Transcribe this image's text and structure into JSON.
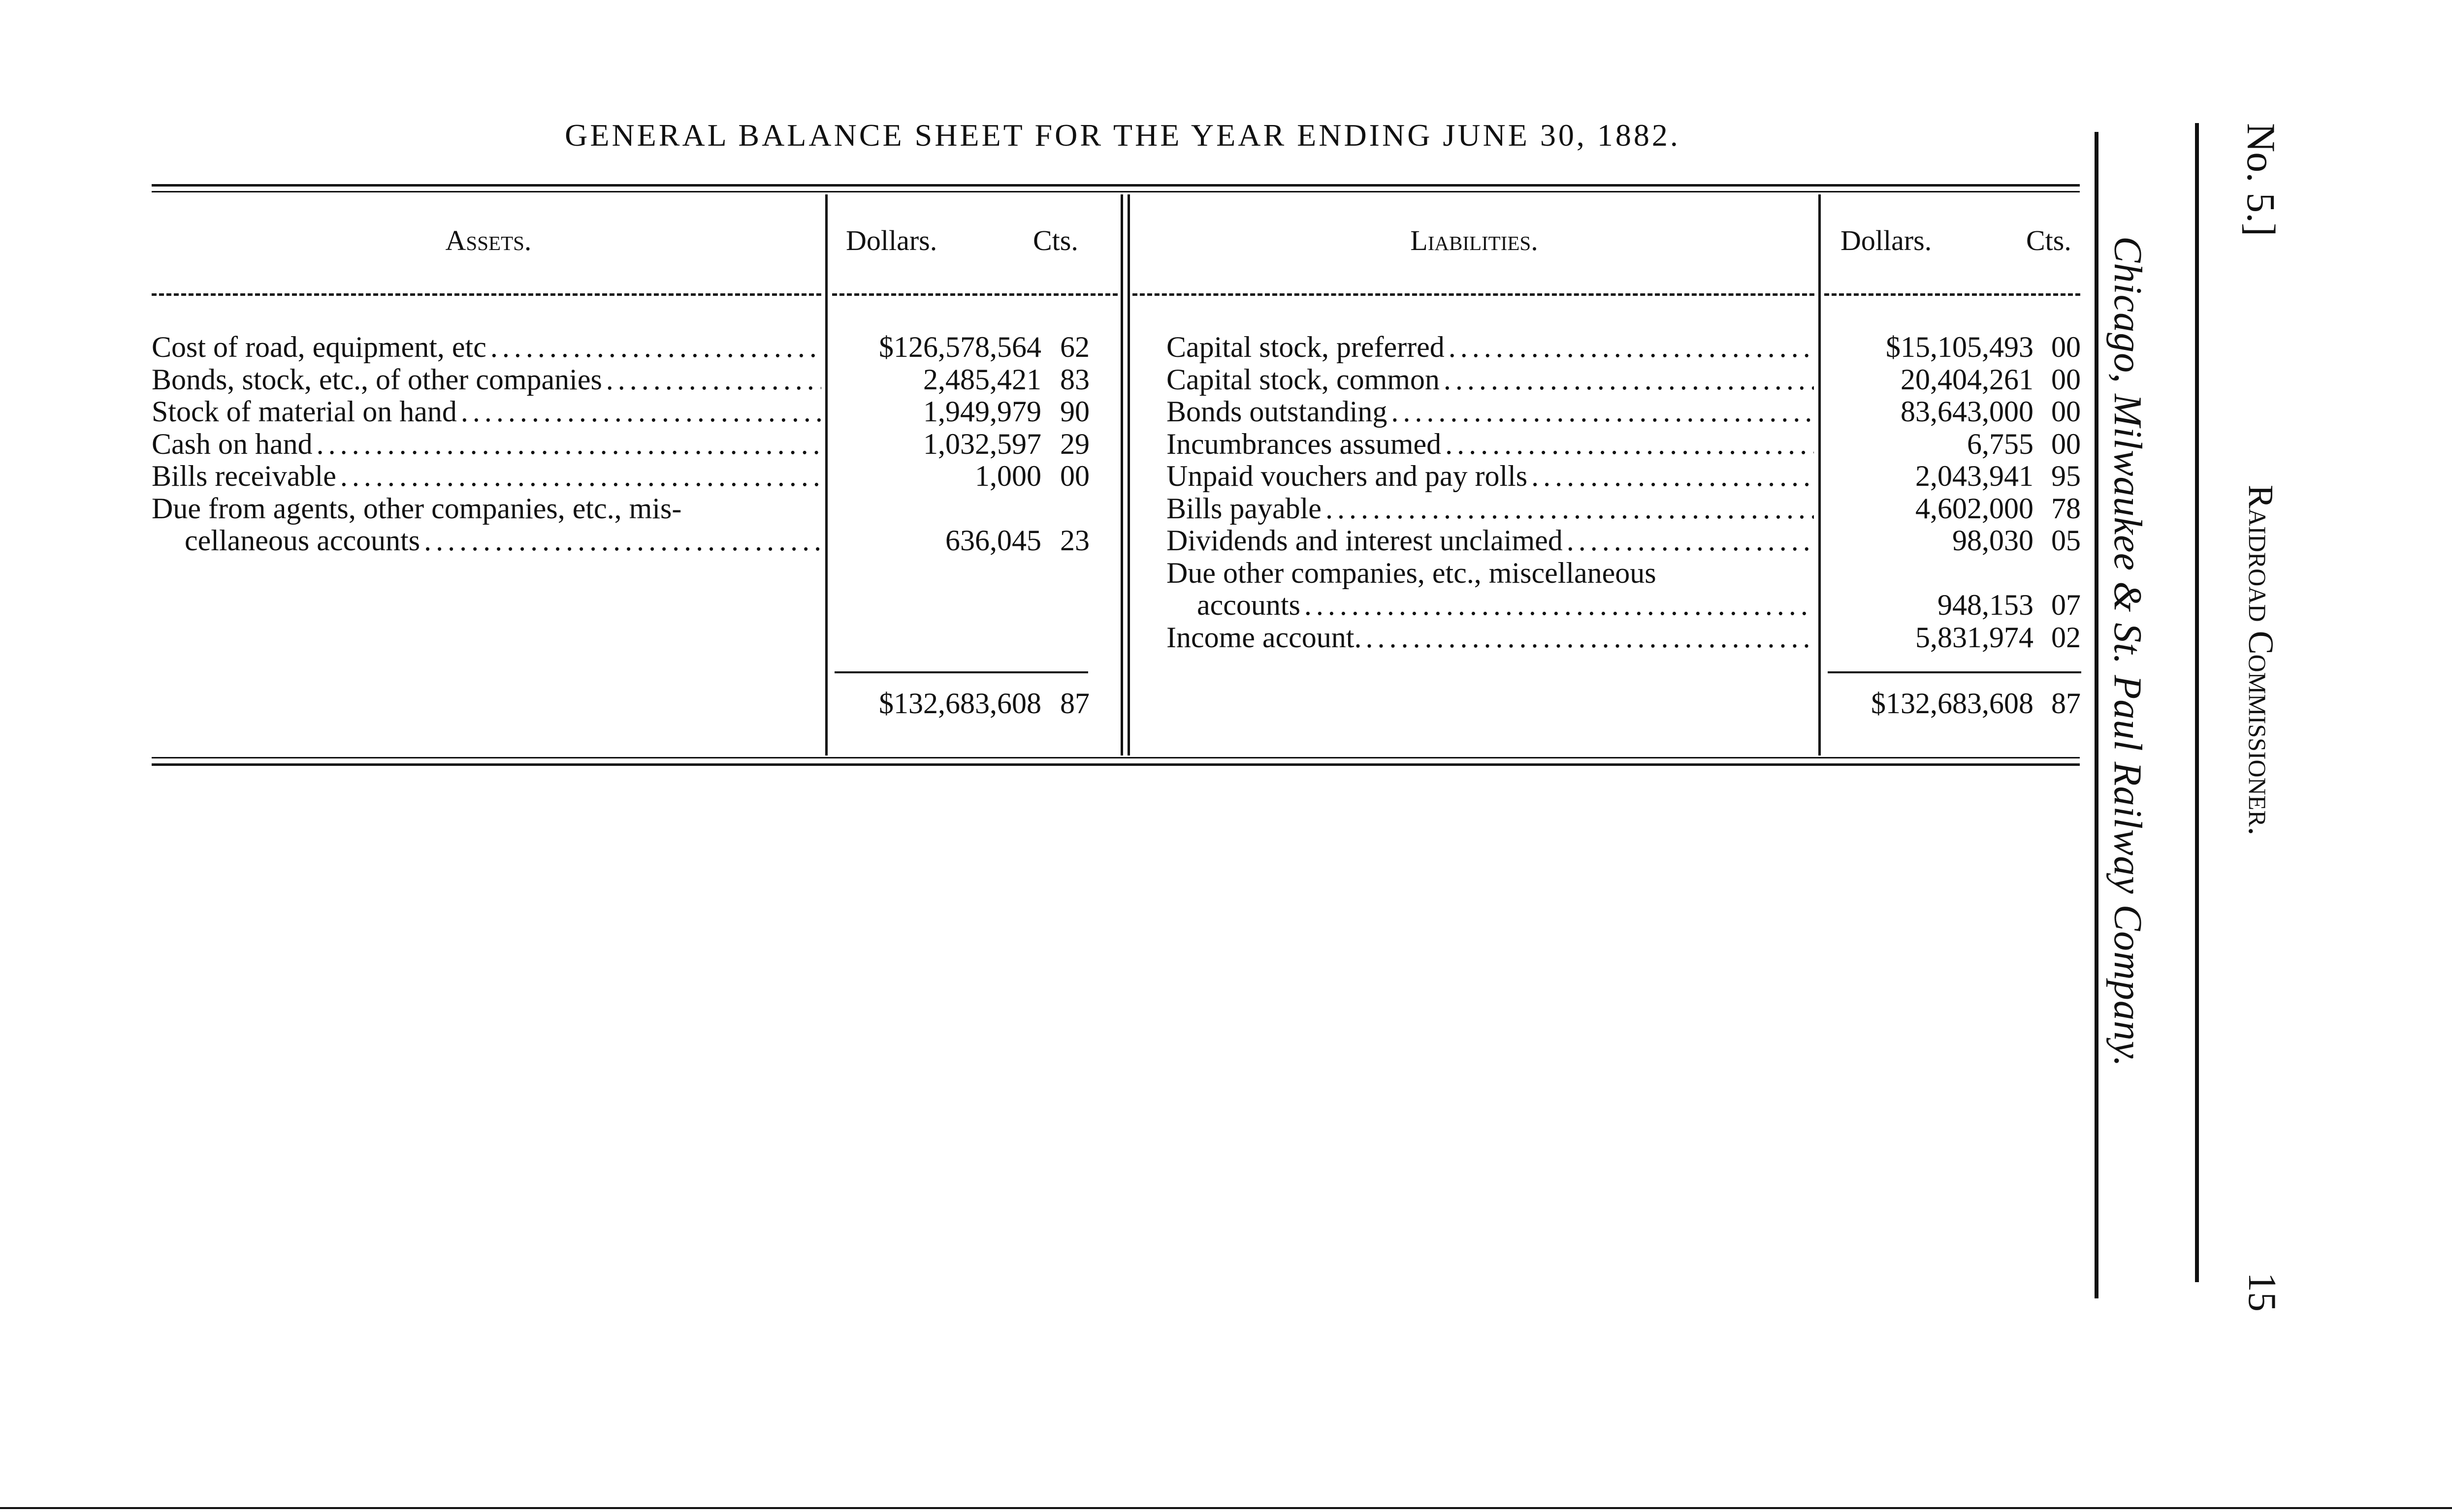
{
  "title": "GENERAL BALANCE SHEET FOR THE YEAR ENDING JUNE 30, 1882.",
  "assets": {
    "header": "Assets.",
    "dollars_header": "Dollars.",
    "cents_header": "Cts.",
    "rows": [
      {
        "label": "Cost of road, equipment, etc",
        "dollars": "$126,578,564",
        "cents": "62"
      },
      {
        "label": "Bonds, stock, etc., of other companies",
        "dollars": "2,485,421",
        "cents": "83"
      },
      {
        "label": "Stock of material on hand",
        "dollars": "1,949,979",
        "cents": "90"
      },
      {
        "label": "Cash on hand",
        "dollars": "1,032,597",
        "cents": "29"
      },
      {
        "label": "Bills receivable",
        "dollars": "1,000",
        "cents": "00"
      },
      {
        "label": "Due from agents, other companies, etc., mis-",
        "label2": "cellaneous accounts",
        "dollars": "636,045",
        "cents": "23"
      }
    ],
    "total_dollars": "$132,683,608",
    "total_cents": "87"
  },
  "liabilities": {
    "header": "Liabilities.",
    "dollars_header": "Dollars.",
    "cents_header": "Cts.",
    "rows": [
      {
        "label": "Capital stock, preferred",
        "dollars": "$15,105,493",
        "cents": "00"
      },
      {
        "label": "Capital stock, common",
        "dollars": "20,404,261",
        "cents": "00"
      },
      {
        "label": "Bonds outstanding",
        "dollars": "83,643,000",
        "cents": "00"
      },
      {
        "label": "Incumbrances assumed",
        "dollars": "6,755",
        "cents": "00"
      },
      {
        "label": "Unpaid vouchers and pay rolls",
        "dollars": "2,043,941",
        "cents": "95"
      },
      {
        "label": "Bills payable",
        "dollars": "4,602,000",
        "cents": "78"
      },
      {
        "label": "Dividends and interest unclaimed",
        "dollars": "98,030",
        "cents": "05"
      },
      {
        "label": "Due other companies, etc., miscellaneous",
        "label2": "accounts",
        "dollars": "948,153",
        "cents": "07"
      },
      {
        "label": "Income account.",
        "dollars": "5,831,974",
        "cents": "02"
      }
    ],
    "total_dollars": "$132,683,608",
    "total_cents": "87"
  },
  "margin": {
    "running_head": "Chicago, Milwaukee & St. Paul Railway Company.",
    "doc_number": "No. 5.]",
    "publisher": "Raidroad Commissioner.",
    "page_number": "15"
  }
}
